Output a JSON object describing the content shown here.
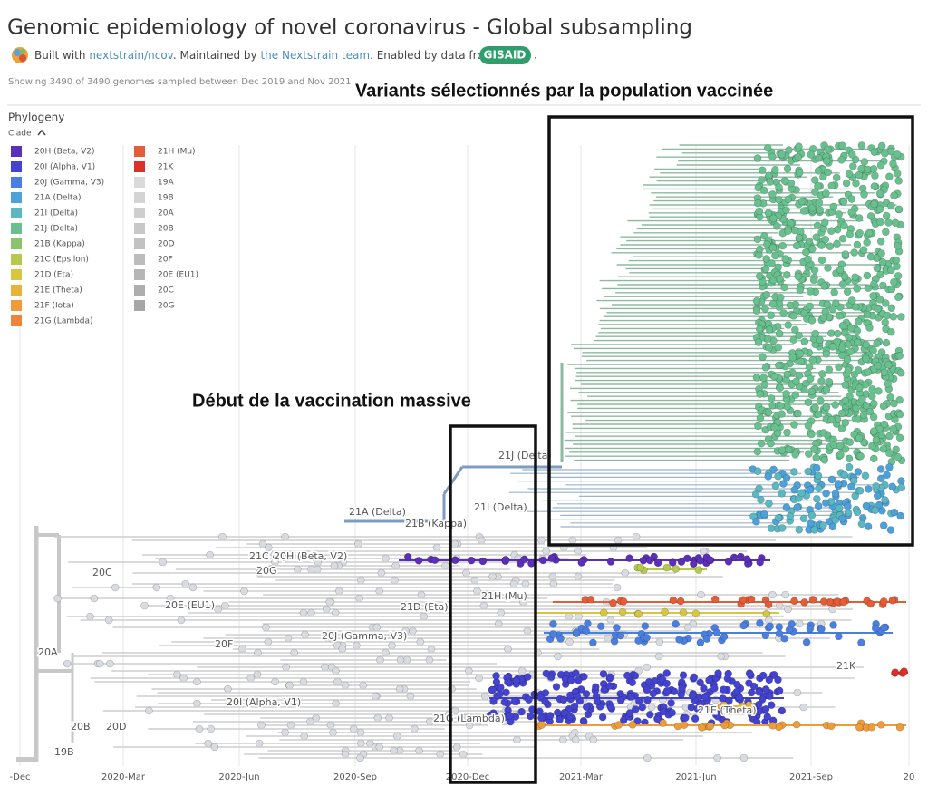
{
  "header": {
    "title": "Genomic epidemiology of novel coronavirus - Global subsampling",
    "built_with": "Built with ",
    "link_repo": "nextstrain/ncov",
    "maintained": ". Maintained by ",
    "link_team": "the Nextstrain team",
    "enabled": ". Enabled by data from ",
    "gisaid": "GISAID",
    "end": ".",
    "showing": "Showing 3490 of 3490 genomes sampled between Dec 2019 and Nov 2021"
  },
  "panel": {
    "title": "Phylogeny",
    "legend_title": "Clade"
  },
  "legend": [
    {
      "label": "20H (Beta, V2)",
      "color": "#5b2fb8"
    },
    {
      "label": "20I (Alpha, V1)",
      "color": "#4443d0"
    },
    {
      "label": "20J (Gamma, V3)",
      "color": "#4a7fe0"
    },
    {
      "label": "21A (Delta)",
      "color": "#4ea0d8"
    },
    {
      "label": "21I (Delta)",
      "color": "#5bb7c2"
    },
    {
      "label": "21J (Delta)",
      "color": "#69c08f"
    },
    {
      "label": "21B (Kappa)",
      "color": "#8bc46a"
    },
    {
      "label": "21C (Epsilon)",
      "color": "#b4c94e"
    },
    {
      "label": "21D (Eta)",
      "color": "#d7c63f"
    },
    {
      "label": "21E (Theta)",
      "color": "#e6b33b"
    },
    {
      "label": "21F (Iota)",
      "color": "#ee9c3a"
    },
    {
      "label": "21G (Lambda)",
      "color": "#ee843a"
    },
    {
      "label": "21H (Mu)",
      "color": "#e65c36"
    },
    {
      "label": "21K",
      "color": "#dc3029"
    },
    {
      "label": "19A",
      "color": "#dadada"
    },
    {
      "label": "19B",
      "color": "#d4d4d4"
    },
    {
      "label": "20A",
      "color": "#cecece"
    },
    {
      "label": "20B",
      "color": "#c8c8c8"
    },
    {
      "label": "20D",
      "color": "#c2c2c2"
    },
    {
      "label": "20F",
      "color": "#bcbcbc"
    },
    {
      "label": "20E (EU1)",
      "color": "#b6b6b6"
    },
    {
      "label": "20C",
      "color": "#aeaeae"
    },
    {
      "label": "20G",
      "color": "#a6a6a6"
    }
  ],
  "clade_labels": [
    "21J (Delta)",
    "21I (Delta)",
    "21A (Delta)",
    "21B (Kappa)",
    "21C (Epsilon)",
    "20H (Beta, V2)",
    "20G",
    "20C",
    "20E (EU1)",
    "21D (Eta)",
    "21H (Mu)",
    "20J (Gamma, V3)",
    "20F",
    "20A",
    "21K",
    "20I (Alpha, V1)",
    "21E (Theta)",
    "20B",
    "20D",
    "21G (Lambda)",
    "19B"
  ],
  "time_axis": [
    "-Dec",
    "2020-Mar",
    "2020-Jun",
    "2020-Sep",
    "2020-Dec",
    "2021-Mar",
    "2021-Jun",
    "2021-Sep",
    "20"
  ],
  "annotations": {
    "vaccinated": "Variants sélectionnés par la population vaccinée",
    "vaccination": "Début de la vaccination massive"
  }
}
